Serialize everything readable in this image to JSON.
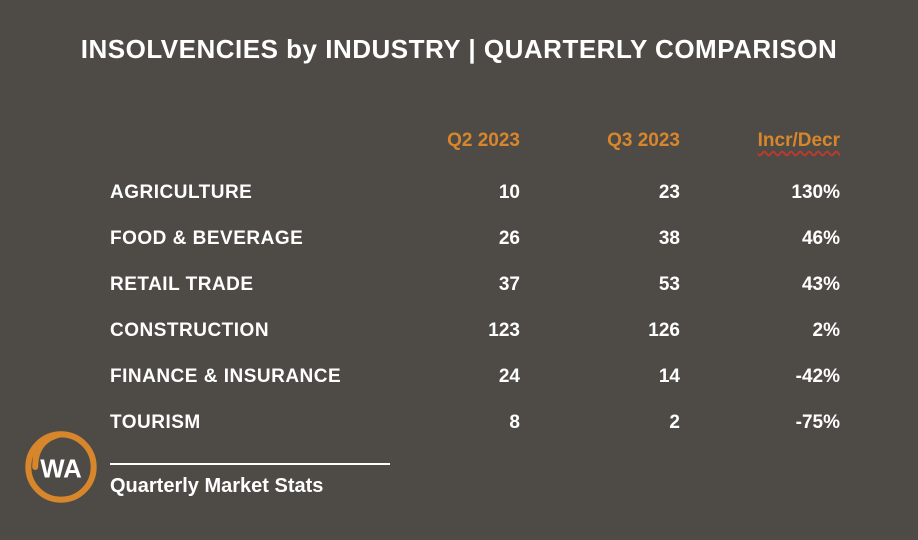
{
  "colors": {
    "background": "#4e4b46",
    "text": "#ffffff",
    "accent": "#d8862b",
    "underline_wavy": "#c0392b"
  },
  "typography": {
    "title_fontsize": 26,
    "header_fontsize": 19,
    "body_fontsize": 19,
    "footer_fontsize": 20,
    "weight": 800
  },
  "title": "INSOLVENCIES by INDUSTRY  |  QUARTERLY COMPARISON",
  "headers": {
    "col1_label": "",
    "col2_label": "Q2 2023",
    "col3_label": "Q3 2023",
    "col4_label": "Incr/Decr"
  },
  "rows": [
    {
      "label": "AGRICULTURE",
      "q2": "10",
      "q3": "23",
      "change": "130%"
    },
    {
      "label": "FOOD & BEVERAGE",
      "q2": "26",
      "q3": "38",
      "change": "46%"
    },
    {
      "label": "RETAIL TRADE",
      "q2": "37",
      "q3": "53",
      "change": "43%"
    },
    {
      "label": "CONSTRUCTION",
      "q2": "123",
      "q3": "126",
      "change": "2%"
    },
    {
      "label": "FINANCE & INSURANCE",
      "q2": "24",
      "q3": "14",
      "change": "-42%"
    },
    {
      "label": "TOURISM",
      "q2": "8",
      "q3": "2",
      "change": "-75%"
    }
  ],
  "footer": {
    "text": "Quarterly Market Stats"
  },
  "logo": {
    "stroke_color": "#d8862b",
    "label": "WA"
  }
}
